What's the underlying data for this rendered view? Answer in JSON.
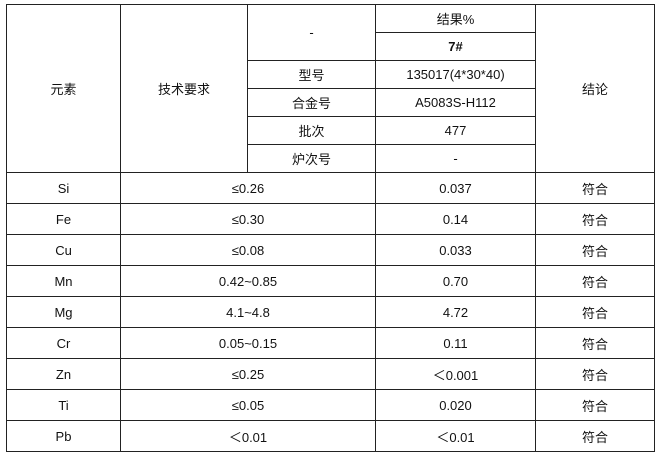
{
  "header": {
    "element": "元素",
    "requirement": "技术要求",
    "conclusion": "结论",
    "dash": "-",
    "result": "结果%",
    "sample": "7#",
    "meta": [
      {
        "label": "型号",
        "value": "135017(4*30*40)"
      },
      {
        "label": "合金号",
        "value": "A5083S-H112"
      },
      {
        "label": "批次",
        "value": "477"
      },
      {
        "label": "炉次号",
        "value": "-"
      }
    ]
  },
  "rows": [
    {
      "element": "Si",
      "requirement": "≤0.26",
      "result": "0.037",
      "conclusion": "符合"
    },
    {
      "element": "Fe",
      "requirement": "≤0.30",
      "result": "0.14",
      "conclusion": "符合"
    },
    {
      "element": "Cu",
      "requirement": "≤0.08",
      "result": "0.033",
      "conclusion": "符合"
    },
    {
      "element": "Mn",
      "requirement": "0.42~0.85",
      "result": "0.70",
      "conclusion": "符合"
    },
    {
      "element": "Mg",
      "requirement": "4.1~4.8",
      "result": "4.72",
      "conclusion": "符合"
    },
    {
      "element": "Cr",
      "requirement": "0.05~0.15",
      "result": "0.11",
      "conclusion": "符合"
    },
    {
      "element": "Zn",
      "requirement": "≤0.25",
      "result": "＜0.001",
      "conclusion": "符合"
    },
    {
      "element": "Ti",
      "requirement": "≤0.05",
      "result": "0.020",
      "conclusion": "符合"
    },
    {
      "element": "Pb",
      "requirement": "＜0.01",
      "result": "＜0.01",
      "conclusion": "符合"
    }
  ]
}
